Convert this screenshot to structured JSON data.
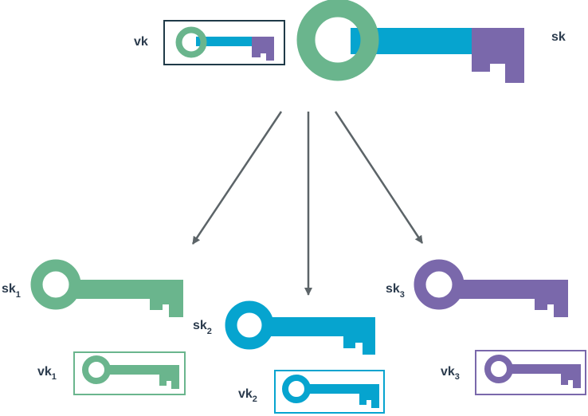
{
  "colors": {
    "green": "#6ab58d",
    "blue": "#06a4cf",
    "purple": "#7a68ab",
    "dark_frame": "#1f3a48",
    "arrow": "#5c6468",
    "text": "#2b3b4d"
  },
  "master": {
    "sk_label": "sk",
    "vk_label": "vk"
  },
  "shares": [
    {
      "sk_base": "sk",
      "sk_sub": "1",
      "vk_base": "vk",
      "vk_sub": "1",
      "color": "green"
    },
    {
      "sk_base": "sk",
      "sk_sub": "2",
      "vk_base": "vk",
      "vk_sub": "2",
      "color": "blue"
    },
    {
      "sk_base": "sk",
      "sk_sub": "3",
      "vk_base": "vk",
      "vk_sub": "3",
      "color": "purple"
    }
  ],
  "icons": {
    "key": "key-icon",
    "arrow": "arrow-down-icon"
  }
}
